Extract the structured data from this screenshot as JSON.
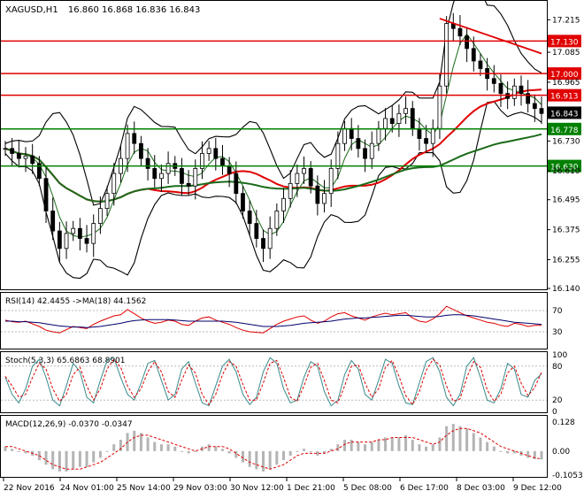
{
  "header": {
    "symbol": "XAGUSD,H1",
    "ohlc": "16.860 16.868 16.836 16.843"
  },
  "colors": {
    "price": "#000000",
    "ma_fast": "#1a6b1a",
    "ma_slow": "#1a6b1a",
    "ma_red": "#e00000",
    "bands": "#000000",
    "resistance": "#e00000",
    "support": "#008000",
    "rsi": "#e00000",
    "rsi_ma": "#00006b",
    "stoch_main": "#3a8a8a",
    "stoch_signal": "#e00000",
    "macd_hist": "#b4b4b4",
    "macd_signal": "#e00000"
  },
  "chart_data": [
    {
      "type": "candlestick",
      "panel": "price",
      "title": "XAGUSD,H1",
      "ylim": [
        16.14,
        17.28
      ],
      "y_ticks": [
        "17.215",
        "17.085",
        "16.965",
        "16.730",
        "16.610",
        "16.495",
        "16.375",
        "16.255",
        "16.140"
      ],
      "levels": [
        {
          "label": "17.130",
          "value": 17.13,
          "color": "red"
        },
        {
          "label": "17.000",
          "value": 17.0,
          "color": "red"
        },
        {
          "label": "16.913",
          "value": 16.913,
          "color": "red"
        },
        {
          "label": "16.843",
          "value": 16.843,
          "color": "black"
        },
        {
          "label": "16.778",
          "value": 16.778,
          "color": "green"
        },
        {
          "label": "16.630",
          "value": 16.63,
          "color": "green"
        }
      ],
      "trendline": {
        "from": [
          0.81,
          17.22
        ],
        "to": [
          1.0,
          17.08
        ]
      },
      "x_labels": [
        "22 Nov 2016",
        "24 Nov 01:00",
        "25 Nov 14:00",
        "29 Nov 03:00",
        "30 Nov 12:00",
        "1 Dec 21:00",
        "5 Dec 08:00",
        "6 Dec 17:00",
        "8 Dec 03:00",
        "9 Dec 12:00"
      ],
      "closes": [
        16.7,
        16.68,
        16.66,
        16.67,
        16.64,
        16.58,
        16.45,
        16.37,
        16.3,
        16.36,
        16.38,
        16.34,
        16.32,
        16.4,
        16.46,
        16.52,
        16.6,
        16.66,
        16.76,
        16.72,
        16.66,
        16.62,
        16.58,
        16.6,
        16.64,
        16.62,
        16.56,
        16.55,
        16.62,
        16.68,
        16.7,
        16.66,
        16.63,
        16.6,
        16.52,
        16.45,
        16.4,
        16.34,
        16.3,
        16.38,
        16.45,
        16.5,
        16.56,
        16.6,
        16.62,
        16.55,
        16.48,
        16.52,
        16.62,
        16.72,
        16.78,
        16.74,
        16.7,
        16.66,
        16.72,
        16.78,
        16.82,
        16.8,
        16.84,
        16.86,
        16.78,
        16.74,
        16.72,
        16.78,
        16.95,
        17.2,
        17.18,
        17.15,
        17.1,
        17.05,
        17.02,
        16.98,
        16.96,
        16.92,
        16.9,
        16.95,
        16.92,
        16.88,
        16.86,
        16.84
      ]
    },
    {
      "type": "line",
      "panel": "rsi",
      "title": "RSI(14) 42.4455 ->MA(18) 44.1562",
      "ylim": [
        0,
        100
      ],
      "y_ticks": [
        "70",
        "30"
      ],
      "series": [
        {
          "name": "RSI(14)",
          "values": [
            52,
            49,
            48,
            50,
            45,
            40,
            33,
            30,
            28,
            34,
            40,
            38,
            36,
            44,
            50,
            55,
            60,
            62,
            72,
            64,
            56,
            50,
            46,
            48,
            52,
            50,
            44,
            42,
            50,
            56,
            58,
            52,
            48,
            44,
            38,
            33,
            30,
            29,
            28,
            36,
            44,
            50,
            54,
            58,
            60,
            52,
            46,
            50,
            58,
            64,
            66,
            60,
            56,
            52,
            58,
            62,
            65,
            62,
            64,
            66,
            56,
            50,
            48,
            54,
            64,
            78,
            72,
            66,
            60,
            56,
            52,
            48,
            46,
            42,
            40,
            46,
            44,
            40,
            42,
            42
          ]
        },
        {
          "name": "MA(18)",
          "values": [
            50,
            50,
            49,
            49,
            48,
            47,
            45,
            43,
            41,
            40,
            39,
            39,
            38,
            39,
            40,
            42,
            44,
            46,
            49,
            51,
            52,
            53,
            53,
            53,
            53,
            52,
            51,
            50,
            50,
            50,
            50,
            50,
            50,
            49,
            48,
            46,
            44,
            42,
            40,
            40,
            40,
            41,
            42,
            44,
            46,
            47,
            48,
            49,
            50,
            52,
            54,
            55,
            56,
            56,
            57,
            58,
            59,
            60,
            61,
            61,
            60,
            59,
            58,
            58,
            59,
            61,
            62,
            62,
            61,
            60,
            58,
            56,
            54,
            52,
            50,
            48,
            47,
            46,
            45,
            44
          ]
        }
      ]
    },
    {
      "type": "line",
      "panel": "stoch",
      "title": "Stoch(5,3,3) 65.6863 68.8901",
      "ylim": [
        0,
        100
      ],
      "y_ticks": [
        "100",
        "80",
        "20",
        "0"
      ],
      "series": [
        {
          "name": "Stoch main",
          "values": [
            60,
            30,
            15,
            40,
            80,
            92,
            60,
            20,
            10,
            45,
            85,
            70,
            25,
            15,
            55,
            90,
            95,
            60,
            30,
            20,
            50,
            85,
            90,
            55,
            20,
            30,
            75,
            88,
            50,
            15,
            10,
            45,
            80,
            92,
            70,
            30,
            12,
            25,
            70,
            95,
            85,
            40,
            15,
            20,
            60,
            88,
            80,
            35,
            10,
            20,
            65,
            90,
            75,
            30,
            20,
            55,
            92,
            85,
            45,
            15,
            12,
            50,
            88,
            95,
            70,
            25,
            10,
            30,
            80,
            95,
            60,
            20,
            15,
            40,
            85,
            75,
            30,
            25,
            55,
            66
          ]
        },
        {
          "name": "Stoch signal",
          "values": [
            62,
            45,
            25,
            30,
            60,
            85,
            75,
            40,
            18,
            30,
            65,
            78,
            45,
            20,
            40,
            75,
            92,
            78,
            45,
            25,
            40,
            70,
            88,
            70,
            35,
            25,
            55,
            82,
            68,
            30,
            12,
            30,
            65,
            88,
            80,
            48,
            20,
            20,
            50,
            85,
            90,
            60,
            25,
            18,
            45,
            78,
            85,
            55,
            20,
            15,
            45,
            80,
            82,
            50,
            25,
            40,
            78,
            90,
            62,
            28,
            12,
            35,
            72,
            92,
            82,
            45,
            18,
            22,
            60,
            88,
            78,
            38,
            18,
            30,
            68,
            80,
            50,
            28,
            42,
            69
          ]
        }
      ]
    },
    {
      "type": "bar",
      "panel": "macd",
      "title": "MACD(12,26,9) -0.0370 -0.0347",
      "ylim": [
        -0.11,
        0.14
      ],
      "y_ticks": [
        "0.128",
        "0.00",
        "-0.1053"
      ],
      "series": [
        {
          "name": "MACD",
          "values": [
            0.02,
            0.01,
            0.0,
            -0.01,
            -0.02,
            -0.04,
            -0.06,
            -0.08,
            -0.09,
            -0.09,
            -0.08,
            -0.07,
            -0.07,
            -0.05,
            -0.03,
            0.0,
            0.03,
            0.05,
            0.08,
            0.09,
            0.08,
            0.06,
            0.04,
            0.03,
            0.03,
            0.02,
            0.0,
            -0.01,
            0.0,
            0.02,
            0.03,
            0.02,
            0.01,
            -0.01,
            -0.03,
            -0.05,
            -0.07,
            -0.08,
            -0.09,
            -0.08,
            -0.06,
            -0.04,
            -0.02,
            0.0,
            0.01,
            0.0,
            -0.02,
            -0.01,
            0.01,
            0.03,
            0.05,
            0.05,
            0.04,
            0.03,
            0.04,
            0.05,
            0.06,
            0.06,
            0.06,
            0.07,
            0.05,
            0.03,
            0.02,
            0.03,
            0.06,
            0.11,
            0.12,
            0.11,
            0.1,
            0.08,
            0.06,
            0.04,
            0.02,
            0.0,
            -0.01,
            -0.01,
            -0.02,
            -0.03,
            -0.035,
            -0.037
          ]
        },
        {
          "name": "Signal",
          "values": [
            0.02,
            0.02,
            0.01,
            0.0,
            -0.01,
            -0.02,
            -0.04,
            -0.06,
            -0.07,
            -0.08,
            -0.08,
            -0.08,
            -0.07,
            -0.06,
            -0.05,
            -0.03,
            -0.01,
            0.01,
            0.04,
            0.06,
            0.07,
            0.07,
            0.06,
            0.05,
            0.04,
            0.03,
            0.02,
            0.01,
            0.0,
            0.01,
            0.02,
            0.02,
            0.02,
            0.01,
            -0.01,
            -0.03,
            -0.05,
            -0.06,
            -0.07,
            -0.08,
            -0.07,
            -0.06,
            -0.04,
            -0.02,
            -0.01,
            -0.01,
            -0.01,
            -0.01,
            0.0,
            0.01,
            0.03,
            0.04,
            0.04,
            0.04,
            0.04,
            0.05,
            0.05,
            0.06,
            0.06,
            0.06,
            0.06,
            0.05,
            0.04,
            0.03,
            0.04,
            0.07,
            0.09,
            0.1,
            0.1,
            0.09,
            0.08,
            0.06,
            0.04,
            0.02,
            0.01,
            0.0,
            -0.01,
            -0.02,
            -0.03,
            -0.035
          ]
        }
      ]
    }
  ]
}
